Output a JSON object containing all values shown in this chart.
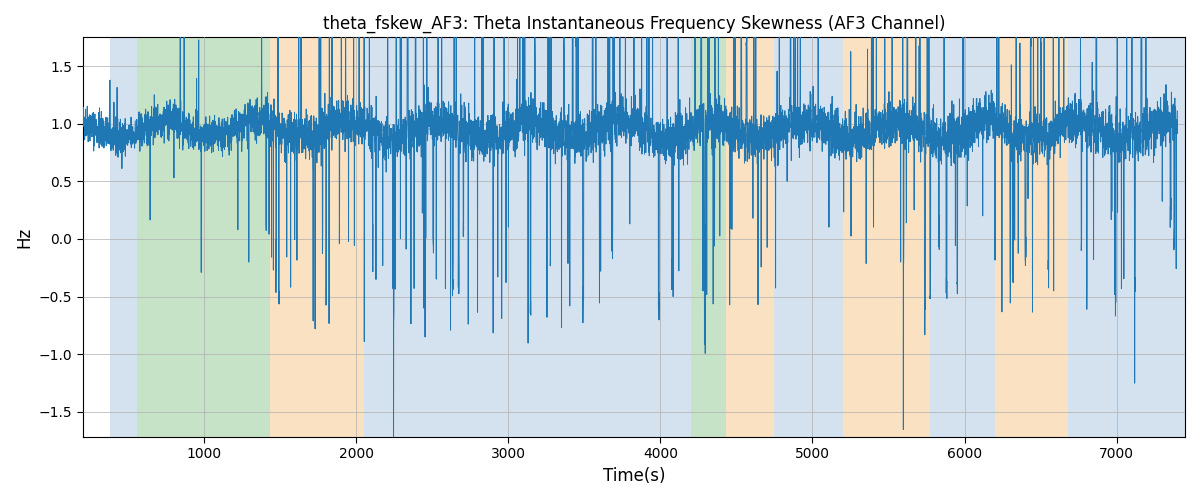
{
  "title": "theta_fskew_AF3: Theta Instantaneous Frequency Skewness (AF3 Channel)",
  "xlabel": "Time(s)",
  "ylabel": "Hz",
  "xlim": [
    200,
    7450
  ],
  "ylim": [
    -1.72,
    1.75
  ],
  "line_color": "#1f77b4",
  "line_width": 0.7,
  "background_color": "#ffffff",
  "grid_color": "#b0b0b0",
  "bands": [
    {
      "start": 380,
      "end": 560,
      "color": "#aac4e0",
      "alpha": 0.5
    },
    {
      "start": 560,
      "end": 1430,
      "color": "#90c990",
      "alpha": 0.5
    },
    {
      "start": 1430,
      "end": 2050,
      "color": "#f5c990",
      "alpha": 0.55
    },
    {
      "start": 2050,
      "end": 2200,
      "color": "#aac4e0",
      "alpha": 0.5
    },
    {
      "start": 2200,
      "end": 4100,
      "color": "#aac4e0",
      "alpha": 0.5
    },
    {
      "start": 4100,
      "end": 4200,
      "color": "#aac4e0",
      "alpha": 0.5
    },
    {
      "start": 4200,
      "end": 4430,
      "color": "#90c990",
      "alpha": 0.5
    },
    {
      "start": 4430,
      "end": 4750,
      "color": "#f5c990",
      "alpha": 0.55
    },
    {
      "start": 4750,
      "end": 5200,
      "color": "#aac4e0",
      "alpha": 0.5
    },
    {
      "start": 5200,
      "end": 5770,
      "color": "#f5c990",
      "alpha": 0.55
    },
    {
      "start": 5770,
      "end": 6200,
      "color": "#aac4e0",
      "alpha": 0.5
    },
    {
      "start": 6200,
      "end": 6680,
      "color": "#f5c990",
      "alpha": 0.55
    },
    {
      "start": 6680,
      "end": 7450,
      "color": "#aac4e0",
      "alpha": 0.5
    }
  ],
  "xticks": [
    1000,
    2000,
    3000,
    4000,
    5000,
    6000,
    7000
  ],
  "yticks": [
    -1.5,
    -1.0,
    -0.5,
    0.0,
    0.5,
    1.0,
    1.5
  ],
  "seed": 42,
  "n_points": 7300,
  "t_start": 200,
  "t_end": 7400
}
